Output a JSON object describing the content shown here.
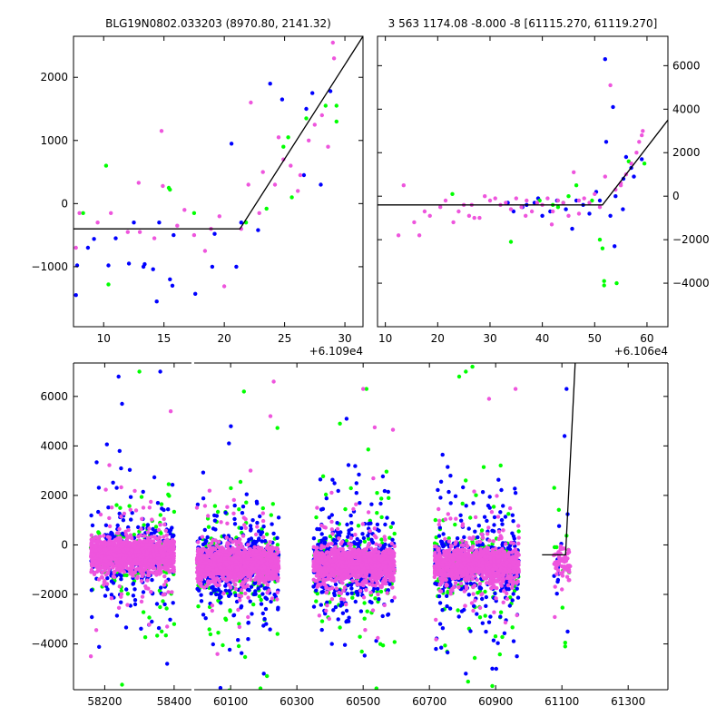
{
  "colors": {
    "blue": "#0000ff",
    "green": "#00ff00",
    "pink": "#ee55dd",
    "model": "#000000"
  },
  "chart_data": [
    {
      "type": "scatter",
      "title": "BLG19N0802.033203 (8970.80, 2141.32)",
      "x_offset_label": "+6.109e4",
      "xlim": [
        7.5,
        31.5
      ],
      "ylim": [
        -1950,
        2650
      ],
      "xticks": [
        10,
        15,
        20,
        25,
        30
      ],
      "xtick_labels": [
        "10",
        "15",
        "20",
        "25",
        "30"
      ],
      "yticks": [
        -1000,
        0,
        1000,
        2000
      ],
      "ytick_labels": [
        "−1000",
        "0",
        "1000",
        "2000"
      ],
      "y_axis_side": "left",
      "model": {
        "x": [
          7.5,
          21.3,
          31.5
        ],
        "y": [
          -400,
          -400,
          2650
        ]
      },
      "series": [
        {
          "color": "blue",
          "points": [
            [
              7.7,
              -1450
            ],
            [
              7.8,
              -980
            ],
            [
              8.7,
              -700
            ],
            [
              9.2,
              -560
            ],
            [
              10.4,
              -980
            ],
            [
              11.0,
              -550
            ],
            [
              12.1,
              -950
            ],
            [
              12.5,
              -300
            ],
            [
              13.3,
              -1000
            ],
            [
              13.4,
              -960
            ],
            [
              14.1,
              -1040
            ],
            [
              14.6,
              -300
            ],
            [
              14.4,
              -1550
            ],
            [
              15.5,
              -1200
            ],
            [
              15.7,
              -1300
            ],
            [
              15.8,
              -500
            ],
            [
              17.6,
              -1430
            ],
            [
              19.0,
              -1000
            ],
            [
              19.2,
              -480
            ],
            [
              21.0,
              -1000
            ],
            [
              21.4,
              -300
            ],
            [
              20.6,
              950
            ],
            [
              22.8,
              -420
            ],
            [
              23.8,
              1900
            ],
            [
              24.8,
              1650
            ],
            [
              26.8,
              1500
            ],
            [
              27.3,
              1750
            ],
            [
              28.8,
              1780
            ],
            [
              28.0,
              300
            ],
            [
              26.6,
              450
            ]
          ]
        },
        {
          "color": "green",
          "points": [
            [
              8.3,
              -150
            ],
            [
              10.2,
              600
            ],
            [
              10.4,
              -1280
            ],
            [
              15.4,
              250
            ],
            [
              15.5,
              220
            ],
            [
              17.5,
              -150
            ],
            [
              21.8,
              -300
            ],
            [
              23.5,
              -80
            ],
            [
              24.9,
              900
            ],
            [
              25.3,
              1050
            ],
            [
              25.6,
              100
            ],
            [
              26.8,
              1350
            ],
            [
              28.4,
              1550
            ],
            [
              29.3,
              1550
            ],
            [
              29.3,
              1300
            ]
          ]
        },
        {
          "color": "pink",
          "points": [
            [
              7.7,
              -700
            ],
            [
              8.0,
              -150
            ],
            [
              9.5,
              -300
            ],
            [
              10.6,
              -150
            ],
            [
              12.0,
              -450
            ],
            [
              12.9,
              330
            ],
            [
              13.0,
              -450
            ],
            [
              14.2,
              -550
            ],
            [
              14.8,
              1150
            ],
            [
              14.9,
              280
            ],
            [
              16.1,
              -350
            ],
            [
              16.7,
              -100
            ],
            [
              17.5,
              -500
            ],
            [
              18.4,
              -750
            ],
            [
              18.9,
              -400
            ],
            [
              19.6,
              -200
            ],
            [
              20.0,
              -1310
            ],
            [
              21.4,
              -400
            ],
            [
              22.0,
              300
            ],
            [
              22.2,
              1600
            ],
            [
              22.9,
              -150
            ],
            [
              23.2,
              500
            ],
            [
              24.2,
              300
            ],
            [
              24.5,
              1050
            ],
            [
              24.9,
              700
            ],
            [
              25.5,
              600
            ],
            [
              26.1,
              200
            ],
            [
              26.3,
              450
            ],
            [
              27.0,
              1000
            ],
            [
              27.5,
              1250
            ],
            [
              28.1,
              1400
            ],
            [
              28.6,
              900
            ],
            [
              29.0,
              2550
            ],
            [
              29.1,
              2300
            ]
          ]
        }
      ]
    },
    {
      "type": "scatter",
      "title": "3 563 1174.08 -8.000 -8 [61115.270, 61119.270]",
      "x_offset_label": "+6.106e4",
      "xlim": [
        8.5,
        64
      ],
      "ylim": [
        -6000,
        7350
      ],
      "xticks": [
        10,
        20,
        30,
        40,
        50,
        60
      ],
      "xtick_labels": [
        "10",
        "20",
        "30",
        "40",
        "50",
        "60"
      ],
      "yticks": [
        -4000,
        -2000,
        0,
        2000,
        4000,
        6000
      ],
      "ytick_labels": [
        "−4000",
        "−2000",
        "0",
        "2000",
        "4000",
        "6000"
      ],
      "y_axis_side": "right",
      "model": {
        "x": [
          8.5,
          51.5,
          64
        ],
        "y": [
          -400,
          -400,
          3500
        ]
      },
      "series": [
        {
          "color": "blue",
          "points": [
            [
              33.4,
              -300
            ],
            [
              34.5,
              -700
            ],
            [
              36.2,
              -500
            ],
            [
              38.5,
              -300
            ],
            [
              40.0,
              -900
            ],
            [
              41.5,
              -700
            ],
            [
              42.8,
              -200
            ],
            [
              44.5,
              -600
            ],
            [
              45.7,
              -1500
            ],
            [
              47.8,
              -400
            ],
            [
              49.0,
              -800
            ],
            [
              51.0,
              -200
            ],
            [
              52.0,
              6300
            ],
            [
              53.5,
              4100
            ],
            [
              54.0,
              0
            ],
            [
              55.5,
              800
            ],
            [
              57.0,
              1300
            ],
            [
              52.2,
              2500
            ],
            [
              53.0,
              -900
            ],
            [
              56.0,
              1800
            ],
            [
              50.3,
              200
            ],
            [
              46.5,
              -200
            ],
            [
              53.8,
              -2300
            ],
            [
              55.4,
              -600
            ],
            [
              57.5,
              900
            ],
            [
              59.0,
              1700
            ],
            [
              37.0,
              -400
            ],
            [
              39.2,
              -100
            ]
          ]
        },
        {
          "color": "green",
          "points": [
            [
              22.8,
              100
            ],
            [
              34.0,
              -2100
            ],
            [
              39.5,
              -200
            ],
            [
              42.0,
              -400
            ],
            [
              44.0,
              -300
            ],
            [
              46.5,
              500
            ],
            [
              49.5,
              -200
            ],
            [
              51.0,
              -2000
            ],
            [
              51.5,
              -2400
            ],
            [
              51.8,
              -3900
            ],
            [
              51.8,
              -4100
            ],
            [
              54.2,
              -4000
            ],
            [
              56.5,
              1600
            ],
            [
              59.5,
              1500
            ],
            [
              45.0,
              0
            ],
            [
              43.0,
              -500
            ]
          ]
        },
        {
          "color": "pink",
          "points": [
            [
              12.5,
              -1800
            ],
            [
              13.5,
              500
            ],
            [
              15.5,
              -1200
            ],
            [
              16.5,
              -1800
            ],
            [
              17.5,
              -700
            ],
            [
              18.5,
              -900
            ],
            [
              20.5,
              -500
            ],
            [
              21.5,
              -200
            ],
            [
              23.0,
              -1200
            ],
            [
              24.0,
              -700
            ],
            [
              25.0,
              -400
            ],
            [
              26.0,
              -900
            ],
            [
              27.0,
              -1000
            ],
            [
              28.0,
              -1000
            ],
            [
              29.0,
              0
            ],
            [
              30.0,
              -200
            ],
            [
              31.0,
              -100
            ],
            [
              32.0,
              -400
            ],
            [
              33.0,
              -300
            ],
            [
              34.0,
              -600
            ],
            [
              35.0,
              -100
            ],
            [
              36.0,
              -500
            ],
            [
              37.0,
              -200
            ],
            [
              38.0,
              -700
            ],
            [
              39.0,
              -300
            ],
            [
              40.0,
              -400
            ],
            [
              41.0,
              -100
            ],
            [
              42.0,
              -700
            ],
            [
              43.0,
              -200
            ],
            [
              44.0,
              -300
            ],
            [
              45.0,
              -900
            ],
            [
              46.0,
              1100
            ],
            [
              47.0,
              -200
            ],
            [
              48.0,
              -100
            ],
            [
              49.0,
              -300
            ],
            [
              50.0,
              100
            ],
            [
              51.0,
              -500
            ],
            [
              52.0,
              900
            ],
            [
              53.0,
              5100
            ],
            [
              54.0,
              300
            ],
            [
              55.0,
              600
            ],
            [
              56.0,
              1000
            ],
            [
              57.0,
              1500
            ],
            [
              58.0,
              2000
            ],
            [
              58.5,
              2500
            ],
            [
              59.0,
              2800
            ],
            [
              59.2,
              3000
            ],
            [
              26.5,
              -400
            ],
            [
              36.8,
              -900
            ],
            [
              41.8,
              -1300
            ],
            [
              47.0,
              -800
            ],
            [
              55.0,
              500
            ]
          ]
        }
      ]
    },
    {
      "type": "scatter",
      "title": "",
      "xlim": [
        58110,
        61420
      ],
      "ylim": [
        -5850,
        7350
      ],
      "axis_break": [
        58450,
        59990
      ],
      "xticks": [
        58200,
        58400,
        60100,
        60300,
        60500,
        60700,
        60900,
        61100,
        61300
      ],
      "xtick_labels": [
        "58200",
        "58400",
        "60100",
        "60300",
        "60500",
        "60700",
        "60900",
        "61100",
        "61300"
      ],
      "yticks": [
        -4000,
        -2000,
        0,
        2000,
        4000,
        6000
      ],
      "ytick_labels": [
        "−4000",
        "−2000",
        "0",
        "2000",
        "4000",
        "6000"
      ],
      "y_axis_side": "left",
      "model": {
        "x": [
          61040,
          61111,
          61140
        ],
        "y": [
          -400,
          -400,
          7350
        ]
      },
      "clusters": [
        {
          "x_range": [
            58160,
            58400
          ],
          "center_y": -400,
          "core_spread": 600,
          "n_blue": 300,
          "n_green": 160,
          "n_pink": 1200
        },
        {
          "x_range": [
            59998,
            60245
          ],
          "center_y": -800,
          "core_spread": 600,
          "n_blue": 420,
          "n_green": 220,
          "n_pink": 1100
        },
        {
          "x_range": [
            60350,
            60595
          ],
          "center_y": -800,
          "core_spread": 600,
          "n_blue": 420,
          "n_green": 200,
          "n_pink": 1000
        },
        {
          "x_range": [
            60715,
            60970
          ],
          "center_y": -800,
          "core_spread": 600,
          "n_blue": 420,
          "n_green": 200,
          "n_pink": 1000
        },
        {
          "x_range": [
            61075,
            61125
          ],
          "center_y": -700,
          "core_spread": 700,
          "n_blue": 15,
          "n_green": 10,
          "n_pink": 60
        }
      ],
      "highlights": [
        {
          "color": "green",
          "points": [
            [
              58300,
              7000
            ],
            [
              58400,
              -3200
            ],
            [
              58250,
              -5650
            ],
            [
              60140,
              6200
            ],
            [
              60190,
              -5800
            ],
            [
              60430,
              4900
            ],
            [
              60510,
              6300
            ],
            [
              60540,
              -5800
            ],
            [
              60810,
              7000
            ],
            [
              60830,
              7200
            ],
            [
              60890,
              -5700
            ],
            [
              60790,
              6800
            ],
            [
              61110,
              -4100
            ],
            [
              61110,
              -3950
            ]
          ]
        },
        {
          "color": "blue",
          "points": [
            [
              58240,
              6800
            ],
            [
              58360,
              7000
            ],
            [
              58250,
              5700
            ],
            [
              60095,
              4100
            ],
            [
              60450,
              5100
            ],
            [
              60890,
              -5000
            ],
            [
              60960,
              2100
            ],
            [
              61114,
              6300
            ],
            [
              61108,
              4400
            ],
            [
              60810,
              -5200
            ],
            [
              60200,
              -5200
            ],
            [
              58380,
              -4800
            ]
          ]
        },
        {
          "color": "pink",
          "points": [
            [
              58160,
              -4500
            ],
            [
              58390,
              5400
            ],
            [
              60230,
              6600
            ],
            [
              60500,
              6300
            ],
            [
              60960,
              6300
            ],
            [
              58380,
              -3300
            ],
            [
              60160,
              3000
            ],
            [
              60220,
              5200
            ],
            [
              60880,
              5900
            ],
            [
              60535,
              4750
            ],
            [
              60590,
              4650
            ],
            [
              61100,
              -1800
            ]
          ]
        }
      ]
    }
  ]
}
